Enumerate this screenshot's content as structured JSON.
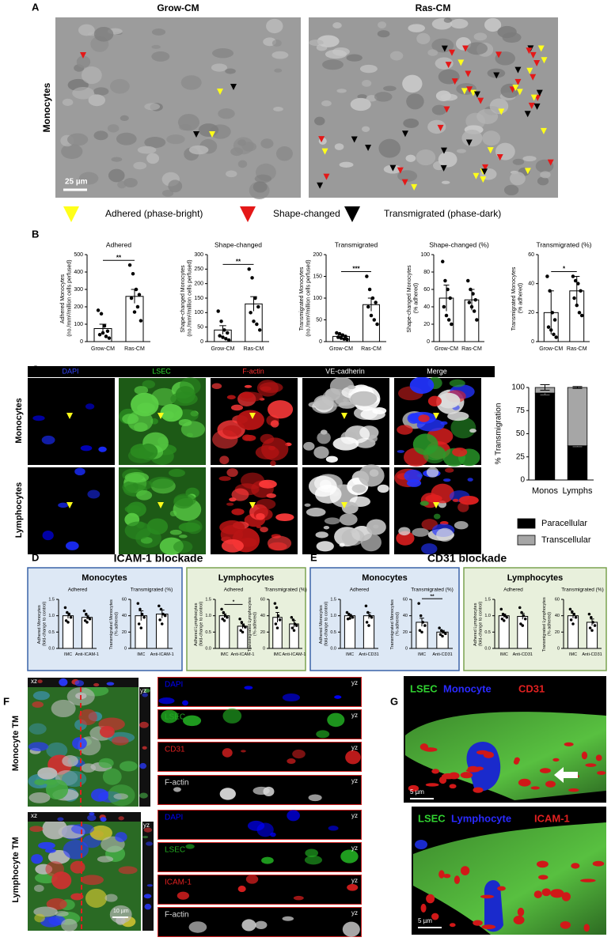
{
  "panel_a": {
    "label": "A",
    "columns": [
      "Grow-CM",
      "Ras-CM"
    ],
    "row": "Monocytes",
    "scale_bar": "25 µm",
    "legend": [
      "Adhered (phase-bright)",
      "Shape-changed",
      "Transmigrated (phase-dark)"
    ]
  },
  "panel_b": {
    "label": "B"
  },
  "panel_c": {
    "label": "C",
    "channels": [
      "DAPI",
      "LSEC",
      "F-actin",
      "VE-cadherin",
      "Merge"
    ],
    "rows": [
      "Monocytes",
      "Lymphocytes"
    ]
  },
  "panel_d": {
    "label": "D",
    "title": "ICAM-1 blockade",
    "groups": [
      "Monocytes",
      "Lymphocytes"
    ]
  },
  "panel_e": {
    "label": "E",
    "title": "CD31 blockade",
    "groups": [
      "Monocytes",
      "Lymphocytes"
    ]
  },
  "panel_f": {
    "label": "F",
    "rows": [
      "Monocyte TM",
      "Lymphocyte TM"
    ],
    "xz": "xz",
    "yz": "yz",
    "channels_top": [
      "DAPI",
      "LSEC",
      "CD31",
      "F-actin"
    ],
    "channels_bottom": [
      "DAPI",
      "LSEC",
      "ICAM-1",
      "F-actin"
    ],
    "scale_bar": "10 µm"
  },
  "panel_g": {
    "label": "G",
    "top": [
      "LSEC",
      "Monocyte",
      "CD31"
    ],
    "bottom": [
      "LSEC",
      "Lymphocyte",
      "ICAM-1"
    ],
    "scale_bar": "5 µm"
  },
  "chart_data": [
    {
      "type": "bar",
      "title": "Adhered",
      "ylabel": "Adhered Monocytes (no./mm²/million cells perfused)",
      "categories": [
        "Grow-CM",
        "Ras-CM"
      ],
      "values": [
        75,
        260
      ],
      "errors": [
        25,
        40
      ],
      "points": [
        [
          180,
          160,
          90,
          60,
          40,
          50,
          30,
          20
        ],
        [
          440,
          390,
          300,
          270,
          250,
          170,
          200,
          120
        ]
      ],
      "ylim": [
        0,
        500
      ],
      "yticks": [
        0,
        100,
        200,
        300,
        400,
        500
      ],
      "significance": "**"
    },
    {
      "type": "bar",
      "title": "Shape-changed",
      "ylabel": "Shape-changed Monocytes (no./mm²/million cells perfused)",
      "categories": [
        "Grow-CM",
        "Ras-CM"
      ],
      "values": [
        40,
        130
      ],
      "errors": [
        15,
        25
      ],
      "points": [
        [
          105,
          70,
          40,
          30,
          20,
          15,
          10,
          5
        ],
        [
          250,
          220,
          150,
          120,
          100,
          70,
          60,
          40
        ]
      ],
      "ylim": [
        0,
        300
      ],
      "yticks": [
        0,
        50,
        100,
        150,
        200,
        250,
        300
      ],
      "significance": "**"
    },
    {
      "type": "bar",
      "title": "Transmigrated",
      "ylabel": "Transmigrated Monocytes (no./mm²/million cells perfused)",
      "categories": [
        "Grow-CM",
        "Ras-CM"
      ],
      "values": [
        12,
        85
      ],
      "errors": [
        3,
        15
      ],
      "points": [
        [
          20,
          18,
          15,
          12,
          10,
          8,
          6,
          5
        ],
        [
          150,
          120,
          100,
          90,
          80,
          60,
          50,
          40
        ]
      ],
      "ylim": [
        0,
        200
      ],
      "yticks": [
        0,
        50,
        100,
        150,
        200
      ],
      "significance": "***"
    },
    {
      "type": "bar",
      "title": "Shape-changed (%)",
      "ylabel": "Shape-changed Monocytes (% adhered)",
      "categories": [
        "Grow-CM",
        "Ras-CM"
      ],
      "values": [
        50,
        48
      ],
      "errors": [
        15,
        12
      ],
      "points": [
        [
          92,
          70,
          60,
          50,
          40,
          30,
          25,
          20
        ],
        [
          70,
          60,
          55,
          48,
          45,
          40,
          35,
          25
        ]
      ],
      "ylim": [
        0,
        100
      ],
      "yticks": [
        0,
        20,
        40,
        60,
        80,
        100
      ]
    },
    {
      "type": "bar",
      "title": "Transmigrated (%)",
      "ylabel": "Transmigrated Monocytes (% adhered)",
      "categories": [
        "Grow-CM",
        "Ras-CM"
      ],
      "values": [
        20,
        35
      ],
      "errors": [
        15,
        10
      ],
      "points": [
        [
          45,
          35,
          20,
          15,
          10,
          8,
          5,
          3
        ],
        [
          45,
          42,
          40,
          35,
          30,
          25,
          20,
          18
        ]
      ],
      "ylim": [
        0,
        60
      ],
      "yticks": [
        0,
        20,
        40,
        60
      ],
      "significance": "*"
    },
    {
      "type": "stacked_bar",
      "ylabel": "% Transmigration",
      "categories": [
        "Monos",
        "Lymphs"
      ],
      "series": [
        {
          "name": "Paracellular",
          "color": "#000000",
          "values": [
            94,
            37
          ],
          "errors": [
            2,
            1
          ]
        },
        {
          "name": "Transcellular",
          "color": "#a6a6a6",
          "values": [
            6,
            63
          ],
          "errors": [
            3,
            1
          ]
        }
      ],
      "ylim": [
        0,
        100
      ],
      "yticks": [
        0,
        25,
        50,
        75,
        100
      ]
    },
    {
      "type": "bar",
      "title": "Adhered",
      "ylabel": "Adhered Monocytes (fold-change to control)",
      "categories": [
        "IMC",
        "Anti-ICAM-1"
      ],
      "values": [
        1.0,
        0.95
      ],
      "errors": [
        0.08,
        0.06
      ],
      "points": [
        [
          1.25,
          1.1,
          1.05,
          0.95,
          0.85,
          0.8
        ],
        [
          1.15,
          1.05,
          0.95,
          0.9,
          0.85,
          0.8
        ]
      ],
      "ylim": [
        0,
        1.5
      ],
      "yticks": [
        {
          "value": 0,
          "label": "0.0"
        },
        {
          "value": 0.5,
          "label": "0.5"
        },
        {
          "value": 1,
          "label": "1.0"
        },
        {
          "value": 1.5,
          "label": "1.5"
        }
      ]
    },
    {
      "type": "bar",
      "title": "Transmigrated (%)",
      "ylabel": "Transmigrated Monocytes (% adhered)",
      "categories": [
        "IMC",
        "Anti-ICAM-1"
      ],
      "values": [
        40,
        42
      ],
      "errors": [
        6,
        5
      ],
      "points": [
        [
          55,
          48,
          42,
          38,
          30,
          25
        ],
        [
          52,
          48,
          42,
          40,
          35,
          30
        ]
      ],
      "ylim": [
        0,
        60
      ],
      "yticks": [
        0,
        20,
        40,
        60
      ]
    },
    {
      "type": "bar",
      "title": "Adhered",
      "ylabel": "Adhered Lymphocytes (fold-change to control)",
      "categories": [
        "IMC",
        "Anti-ICAM-1"
      ],
      "values": [
        1.0,
        0.68
      ],
      "errors": [
        0.06,
        0.07
      ],
      "points": [
        [
          1.2,
          1.1,
          1.0,
          0.95,
          0.9,
          0.85
        ],
        [
          0.9,
          0.8,
          0.7,
          0.65,
          0.55,
          0.5
        ]
      ],
      "ylim": [
        0,
        1.5
      ],
      "yticks": [
        {
          "value": 0,
          "label": "0.0"
        },
        {
          "value": 0.5,
          "label": "0.5"
        },
        {
          "value": 1,
          "label": "1.0"
        },
        {
          "value": 1.5,
          "label": "1.5"
        }
      ],
      "significance": "*"
    },
    {
      "type": "bar",
      "title": "Transmigrated (%)",
      "ylabel": "Transmigrated Lymphocytes (% adhered)",
      "categories": [
        "IMC",
        "Anti-ICAM-1"
      ],
      "values": [
        38,
        30
      ],
      "errors": [
        6,
        4
      ],
      "points": [
        [
          55,
          50,
          40,
          35,
          30,
          25
        ],
        [
          38,
          35,
          30,
          28,
          25,
          22
        ]
      ],
      "ylim": [
        0,
        60
      ],
      "yticks": [
        0,
        20,
        40,
        60
      ]
    },
    {
      "type": "bar",
      "title": "Adhered",
      "ylabel": "Adhered Monocytes (fold-change to control)",
      "categories": [
        "IMC",
        "Anti-CD31"
      ],
      "values": [
        1.0,
        1.0
      ],
      "errors": [
        0.04,
        0.09
      ],
      "points": [
        [
          1.1,
          1.05,
          1.0,
          0.95,
          0.9,
          0.92
        ],
        [
          1.3,
          1.1,
          1.0,
          0.95,
          0.8,
          0.7
        ]
      ],
      "ylim": [
        0,
        1.5
      ],
      "yticks": [
        {
          "value": 0,
          "label": "0.0"
        },
        {
          "value": 0.5,
          "label": "0.5"
        },
        {
          "value": 1,
          "label": "1.0"
        },
        {
          "value": 1.5,
          "label": "1.5"
        }
      ]
    },
    {
      "type": "bar",
      "title": "Transmigrated (%)",
      "ylabel": "Transmigrated Monocytes (% adhered)",
      "categories": [
        "IMC",
        "Anti-CD31"
      ],
      "values": [
        32,
        20
      ],
      "errors": [
        5,
        2
      ],
      "points": [
        [
          55,
          40,
          32,
          28,
          22,
          20
        ],
        [
          25,
          22,
          20,
          18,
          17,
          15
        ]
      ],
      "ylim": [
        0,
        60
      ],
      "yticks": [
        0,
        20,
        40,
        60
      ],
      "significance": "**"
    },
    {
      "type": "bar",
      "title": "Adhered",
      "ylabel": "Adhered Lymphocytes (fold-change to control)",
      "categories": [
        "IMC",
        "Anti-CD31"
      ],
      "values": [
        1.0,
        0.98
      ],
      "errors": [
        0.05,
        0.09
      ],
      "points": [
        [
          1.2,
          1.05,
          1.0,
          0.95,
          0.9,
          0.85
        ],
        [
          1.25,
          1.1,
          1.0,
          0.9,
          0.75,
          0.7
        ]
      ],
      "ylim": [
        0,
        1.5
      ],
      "yticks": [
        {
          "value": 0,
          "label": "0.0"
        },
        {
          "value": 0.5,
          "label": "0.5"
        },
        {
          "value": 1,
          "label": "1.0"
        },
        {
          "value": 1.5,
          "label": "1.5"
        }
      ]
    },
    {
      "type": "bar",
      "title": "Transmigrated (%)",
      "ylabel": "Transmigrated Lymphocytes (% adhered)",
      "categories": [
        "IMC",
        "Anti-CD31"
      ],
      "values": [
        40,
        32
      ],
      "errors": [
        3,
        4
      ],
      "points": [
        [
          48,
          45,
          42,
          38,
          35,
          30
        ],
        [
          42,
          38,
          32,
          28,
          25,
          22
        ]
      ],
      "ylim": [
        0,
        60
      ],
      "yticks": [
        0,
        20,
        40,
        60
      ]
    }
  ]
}
